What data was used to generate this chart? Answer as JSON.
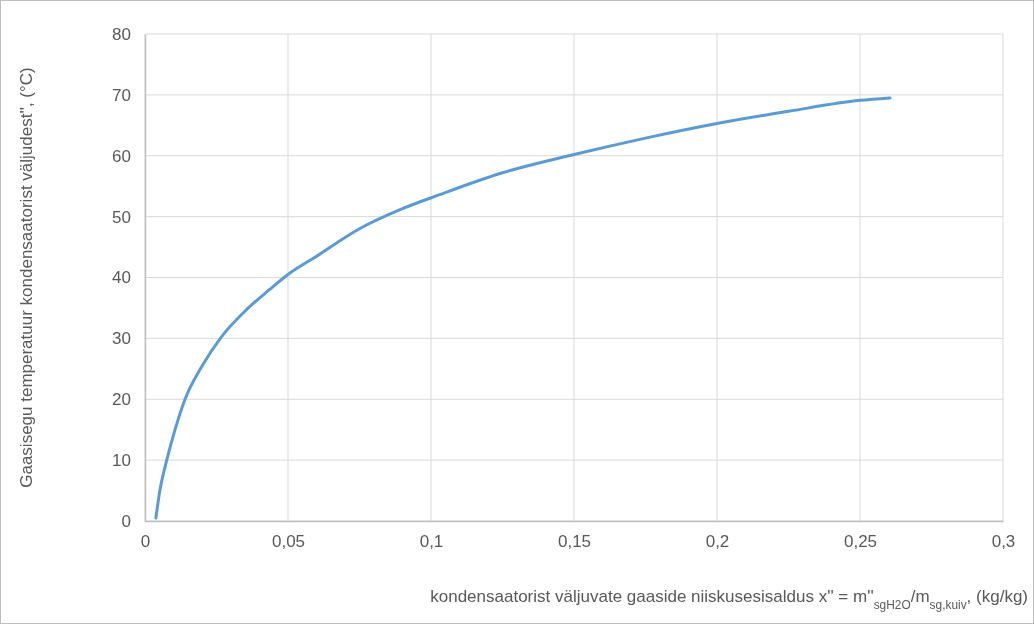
{
  "chart_data": {
    "type": "line",
    "xlabel": "kondensaatorist väljuvate gaaside niiskusesisaldus  x'' = m''$_{sgH2O}$/m$_{sg,kuiv}$, (kg/kg)",
    "ylabel": "Gaasisegu temperatuur kondensaatorist väljudest'', (°C)",
    "xlim": [
      0,
      0.3
    ],
    "xticks": [
      0,
      {
        "value": 0.05,
        "label": "0,05"
      },
      {
        "value": 0.1,
        "label": "0,1"
      },
      {
        "value": 0.15,
        "label": "0,15"
      },
      {
        "value": 0.2,
        "label": "0,2"
      },
      {
        "value": 0.25,
        "label": "0,25"
      },
      {
        "value": 0.3,
        "label": "0,3"
      }
    ],
    "ylim": [
      0,
      80
    ],
    "yticks": [
      0,
      10,
      20,
      30,
      40,
      50,
      60,
      70,
      80
    ],
    "grid": true,
    "marker": "none",
    "line_style": "solid",
    "series": [
      {
        "color": "#5b9bd5",
        "x": [
          0.0038,
          0.0052,
          0.0076,
          0.0105,
          0.014,
          0.02,
          0.0268,
          0.035,
          0.0435,
          0.05,
          0.06,
          0.075,
          0.09,
          0.103,
          0.125,
          0.15,
          0.175,
          0.2,
          0.225,
          0.25,
          0.2605
        ],
        "values": [
          0.5,
          5,
          10,
          15,
          20,
          25.5,
          30.3,
          34.5,
          38,
          40.5,
          43.5,
          48,
          51.3,
          53.6,
          57.2,
          60.2,
          62.9,
          65.3,
          67.3,
          69.1,
          69.5
        ]
      }
    ]
  }
}
